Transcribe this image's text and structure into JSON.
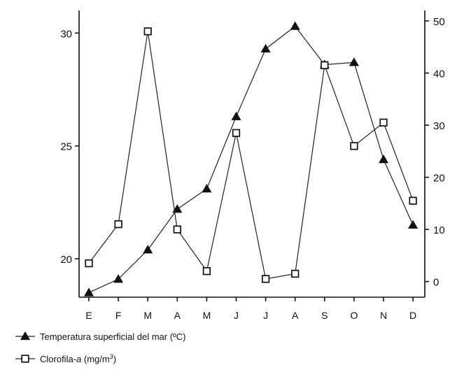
{
  "chart_data": {
    "type": "line",
    "categories": [
      "E",
      "F",
      "M",
      "A",
      "M",
      "J",
      "J",
      "A",
      "S",
      "O",
      "N",
      "D"
    ],
    "y_left": {
      "ylim": [
        18.3,
        31
      ],
      "ticks": [
        20,
        25,
        30
      ]
    },
    "y_right": {
      "ylim": [
        -3,
        52
      ],
      "ticks": [
        0,
        10,
        20,
        30,
        40,
        50
      ]
    },
    "series": [
      {
        "name": "Temperatura superficial del mar (ºC)",
        "axis": "left",
        "marker": "filled-triangle",
        "values": [
          18.5,
          19.1,
          20.4,
          22.2,
          23.1,
          26.3,
          29.3,
          30.3,
          28.6,
          28.7,
          24.4,
          21.5
        ]
      },
      {
        "name": "Clorofila-a (mg/m3)",
        "axis": "right",
        "marker": "open-square",
        "values": [
          3.5,
          11,
          48,
          10,
          2,
          28.5,
          0.5,
          1.5,
          41.5,
          26,
          30.5,
          15.5
        ]
      }
    ],
    "legend": {
      "position": "bottom-left",
      "items": [
        {
          "pre": "Temperatura superficial del mar (ºC)",
          "italic": "",
          "post": "",
          "sup": "",
          "tail": ""
        },
        {
          "pre": "Clorofila-",
          "italic": "a",
          "post": " (mg/m",
          "sup": "3",
          "tail": ")"
        }
      ]
    },
    "grid": false,
    "colors": {
      "line": "#222222",
      "marker": "#111111",
      "axis": "#111111"
    }
  }
}
